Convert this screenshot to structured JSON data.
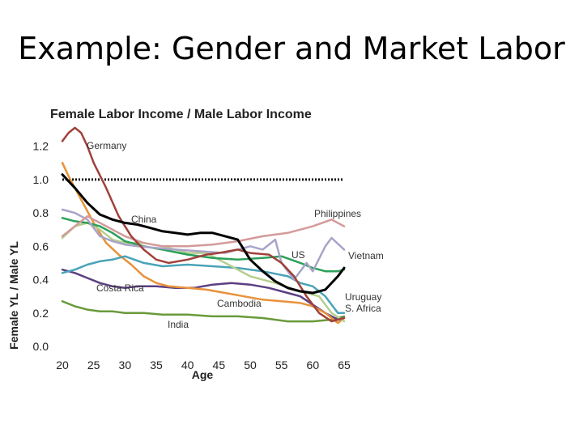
{
  "slide": {
    "title": "Example: Gender and Market Labor"
  },
  "chart_data": {
    "type": "line",
    "title": "Female Labor Income / Male Labor Income",
    "xlabel": "Age",
    "ylabel": "Female YL / Male YL",
    "xlim": [
      20,
      65
    ],
    "ylim": [
      0,
      1.3
    ],
    "x_ticks": [
      "20",
      "25",
      "30",
      "35",
      "40",
      "45",
      "50",
      "55",
      "60",
      "65"
    ],
    "y_ticks": [
      "0.0",
      "0.2",
      "0.4",
      "0.6",
      "0.8",
      "1.0",
      "1.2"
    ],
    "reference_line": {
      "y": 1.0,
      "style": "dotted",
      "color": "#111111"
    },
    "series": [
      {
        "name": "Germany",
        "color": "#a0413a",
        "x": [
          20,
          21,
          22,
          23,
          24,
          25,
          27,
          29,
          31,
          33,
          35,
          37,
          40,
          43,
          45,
          48,
          50,
          53,
          55,
          57,
          59,
          61,
          63,
          65
        ],
        "y": [
          1.23,
          1.28,
          1.31,
          1.28,
          1.2,
          1.1,
          0.95,
          0.78,
          0.66,
          0.58,
          0.52,
          0.5,
          0.52,
          0.55,
          0.56,
          0.58,
          0.56,
          0.55,
          0.5,
          0.42,
          0.3,
          0.2,
          0.15,
          0.17
        ]
      },
      {
        "name": "China",
        "color": "#000000",
        "x": [
          20,
          22,
          24,
          26,
          28,
          30,
          32,
          34,
          36,
          38,
          40,
          42,
          44,
          46,
          48,
          50,
          52,
          54,
          56,
          58,
          60,
          62,
          64,
          65
        ],
        "y": [
          1.03,
          0.95,
          0.86,
          0.79,
          0.76,
          0.74,
          0.73,
          0.71,
          0.69,
          0.68,
          0.67,
          0.68,
          0.68,
          0.66,
          0.64,
          0.52,
          0.45,
          0.39,
          0.35,
          0.33,
          0.32,
          0.34,
          0.42,
          0.47
        ]
      },
      {
        "name": "Philippines",
        "color": "#d49a9a",
        "x": [
          20,
          22,
          24,
          26,
          28,
          30,
          33,
          36,
          40,
          44,
          48,
          52,
          56,
          60,
          63,
          65
        ],
        "y": [
          0.66,
          0.72,
          0.78,
          0.74,
          0.7,
          0.66,
          0.62,
          0.6,
          0.6,
          0.61,
          0.63,
          0.66,
          0.68,
          0.72,
          0.76,
          0.72
        ]
      },
      {
        "name": "Vietnam",
        "color": "#a9a3c8",
        "x": [
          20,
          22,
          24,
          26,
          28,
          30,
          32,
          35,
          38,
          42,
          46,
          50,
          52,
          54,
          55,
          57,
          59,
          60,
          62,
          63,
          65
        ],
        "y": [
          0.82,
          0.8,
          0.76,
          0.66,
          0.63,
          0.61,
          0.6,
          0.59,
          0.58,
          0.57,
          0.56,
          0.6,
          0.58,
          0.64,
          0.5,
          0.4,
          0.5,
          0.45,
          0.6,
          0.65,
          0.58
        ]
      },
      {
        "name": "US",
        "color": "#2ca05a",
        "x": [
          20,
          22,
          24,
          26,
          28,
          30,
          33,
          36,
          40,
          44,
          48,
          52,
          55,
          58,
          60,
          62,
          64,
          65
        ],
        "y": [
          0.77,
          0.75,
          0.74,
          0.72,
          0.68,
          0.63,
          0.6,
          0.58,
          0.55,
          0.53,
          0.52,
          0.53,
          0.54,
          0.5,
          0.47,
          0.45,
          0.45,
          0.46
        ]
      },
      {
        "name": "Uruguay",
        "color": "#4aa3b8",
        "x": [
          20,
          22,
          24,
          26,
          28,
          30,
          33,
          36,
          40,
          44,
          48,
          52,
          56,
          58,
          60,
          62,
          64,
          65
        ],
        "y": [
          0.44,
          0.46,
          0.49,
          0.51,
          0.52,
          0.54,
          0.5,
          0.48,
          0.49,
          0.48,
          0.47,
          0.45,
          0.42,
          0.38,
          0.36,
          0.3,
          0.2,
          0.2
        ]
      },
      {
        "name": "S. Africa",
        "color": "#b5cf8f",
        "x": [
          20,
          22,
          24,
          26,
          28,
          30,
          33,
          36,
          40,
          43,
          46,
          50,
          54,
          58,
          61,
          63,
          65
        ],
        "y": [
          0.65,
          0.72,
          0.74,
          0.7,
          0.64,
          0.62,
          0.62,
          0.6,
          0.56,
          0.56,
          0.5,
          0.42,
          0.38,
          0.33,
          0.3,
          0.2,
          0.15
        ]
      },
      {
        "name": "Costa Rica",
        "color": "#5b3f82",
        "x": [
          20,
          22,
          24,
          26,
          28,
          30,
          32,
          35,
          38,
          41,
          44,
          47,
          50,
          53,
          56,
          58,
          60,
          62,
          64,
          65
        ],
        "y": [
          0.46,
          0.44,
          0.41,
          0.38,
          0.36,
          0.35,
          0.36,
          0.36,
          0.35,
          0.35,
          0.37,
          0.38,
          0.37,
          0.35,
          0.32,
          0.3,
          0.25,
          0.2,
          0.16,
          0.17
        ]
      },
      {
        "name": "Cambodia",
        "color": "#e8923a",
        "x": [
          20,
          21,
          23,
          25,
          27,
          29,
          31,
          33,
          35,
          37,
          40,
          43,
          46,
          49,
          52,
          55,
          58,
          60,
          62,
          64,
          65
        ],
        "y": [
          1.1,
          1.02,
          0.88,
          0.74,
          0.62,
          0.55,
          0.49,
          0.42,
          0.38,
          0.36,
          0.35,
          0.34,
          0.32,
          0.3,
          0.28,
          0.27,
          0.26,
          0.24,
          0.2,
          0.14,
          0.17
        ]
      },
      {
        "name": "India",
        "color": "#6a9a3a",
        "x": [
          20,
          22,
          24,
          26,
          28,
          30,
          33,
          36,
          40,
          44,
          48,
          52,
          56,
          60,
          63,
          65
        ],
        "y": [
          0.27,
          0.24,
          0.22,
          0.21,
          0.21,
          0.2,
          0.2,
          0.19,
          0.19,
          0.18,
          0.18,
          0.17,
          0.15,
          0.15,
          0.16,
          0.18
        ]
      }
    ]
  }
}
